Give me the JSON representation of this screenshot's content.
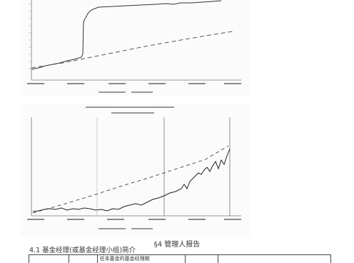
{
  "charts": [],
  "footer": {
    "section_title": "§4  管理人报告",
    "subsection_title": "4.1 基金经理(或基金经理小组)简介",
    "table_header": [
      "",
      "",
      "任本基金的基金经理期",
      "",
      ""
    ]
  }
}
